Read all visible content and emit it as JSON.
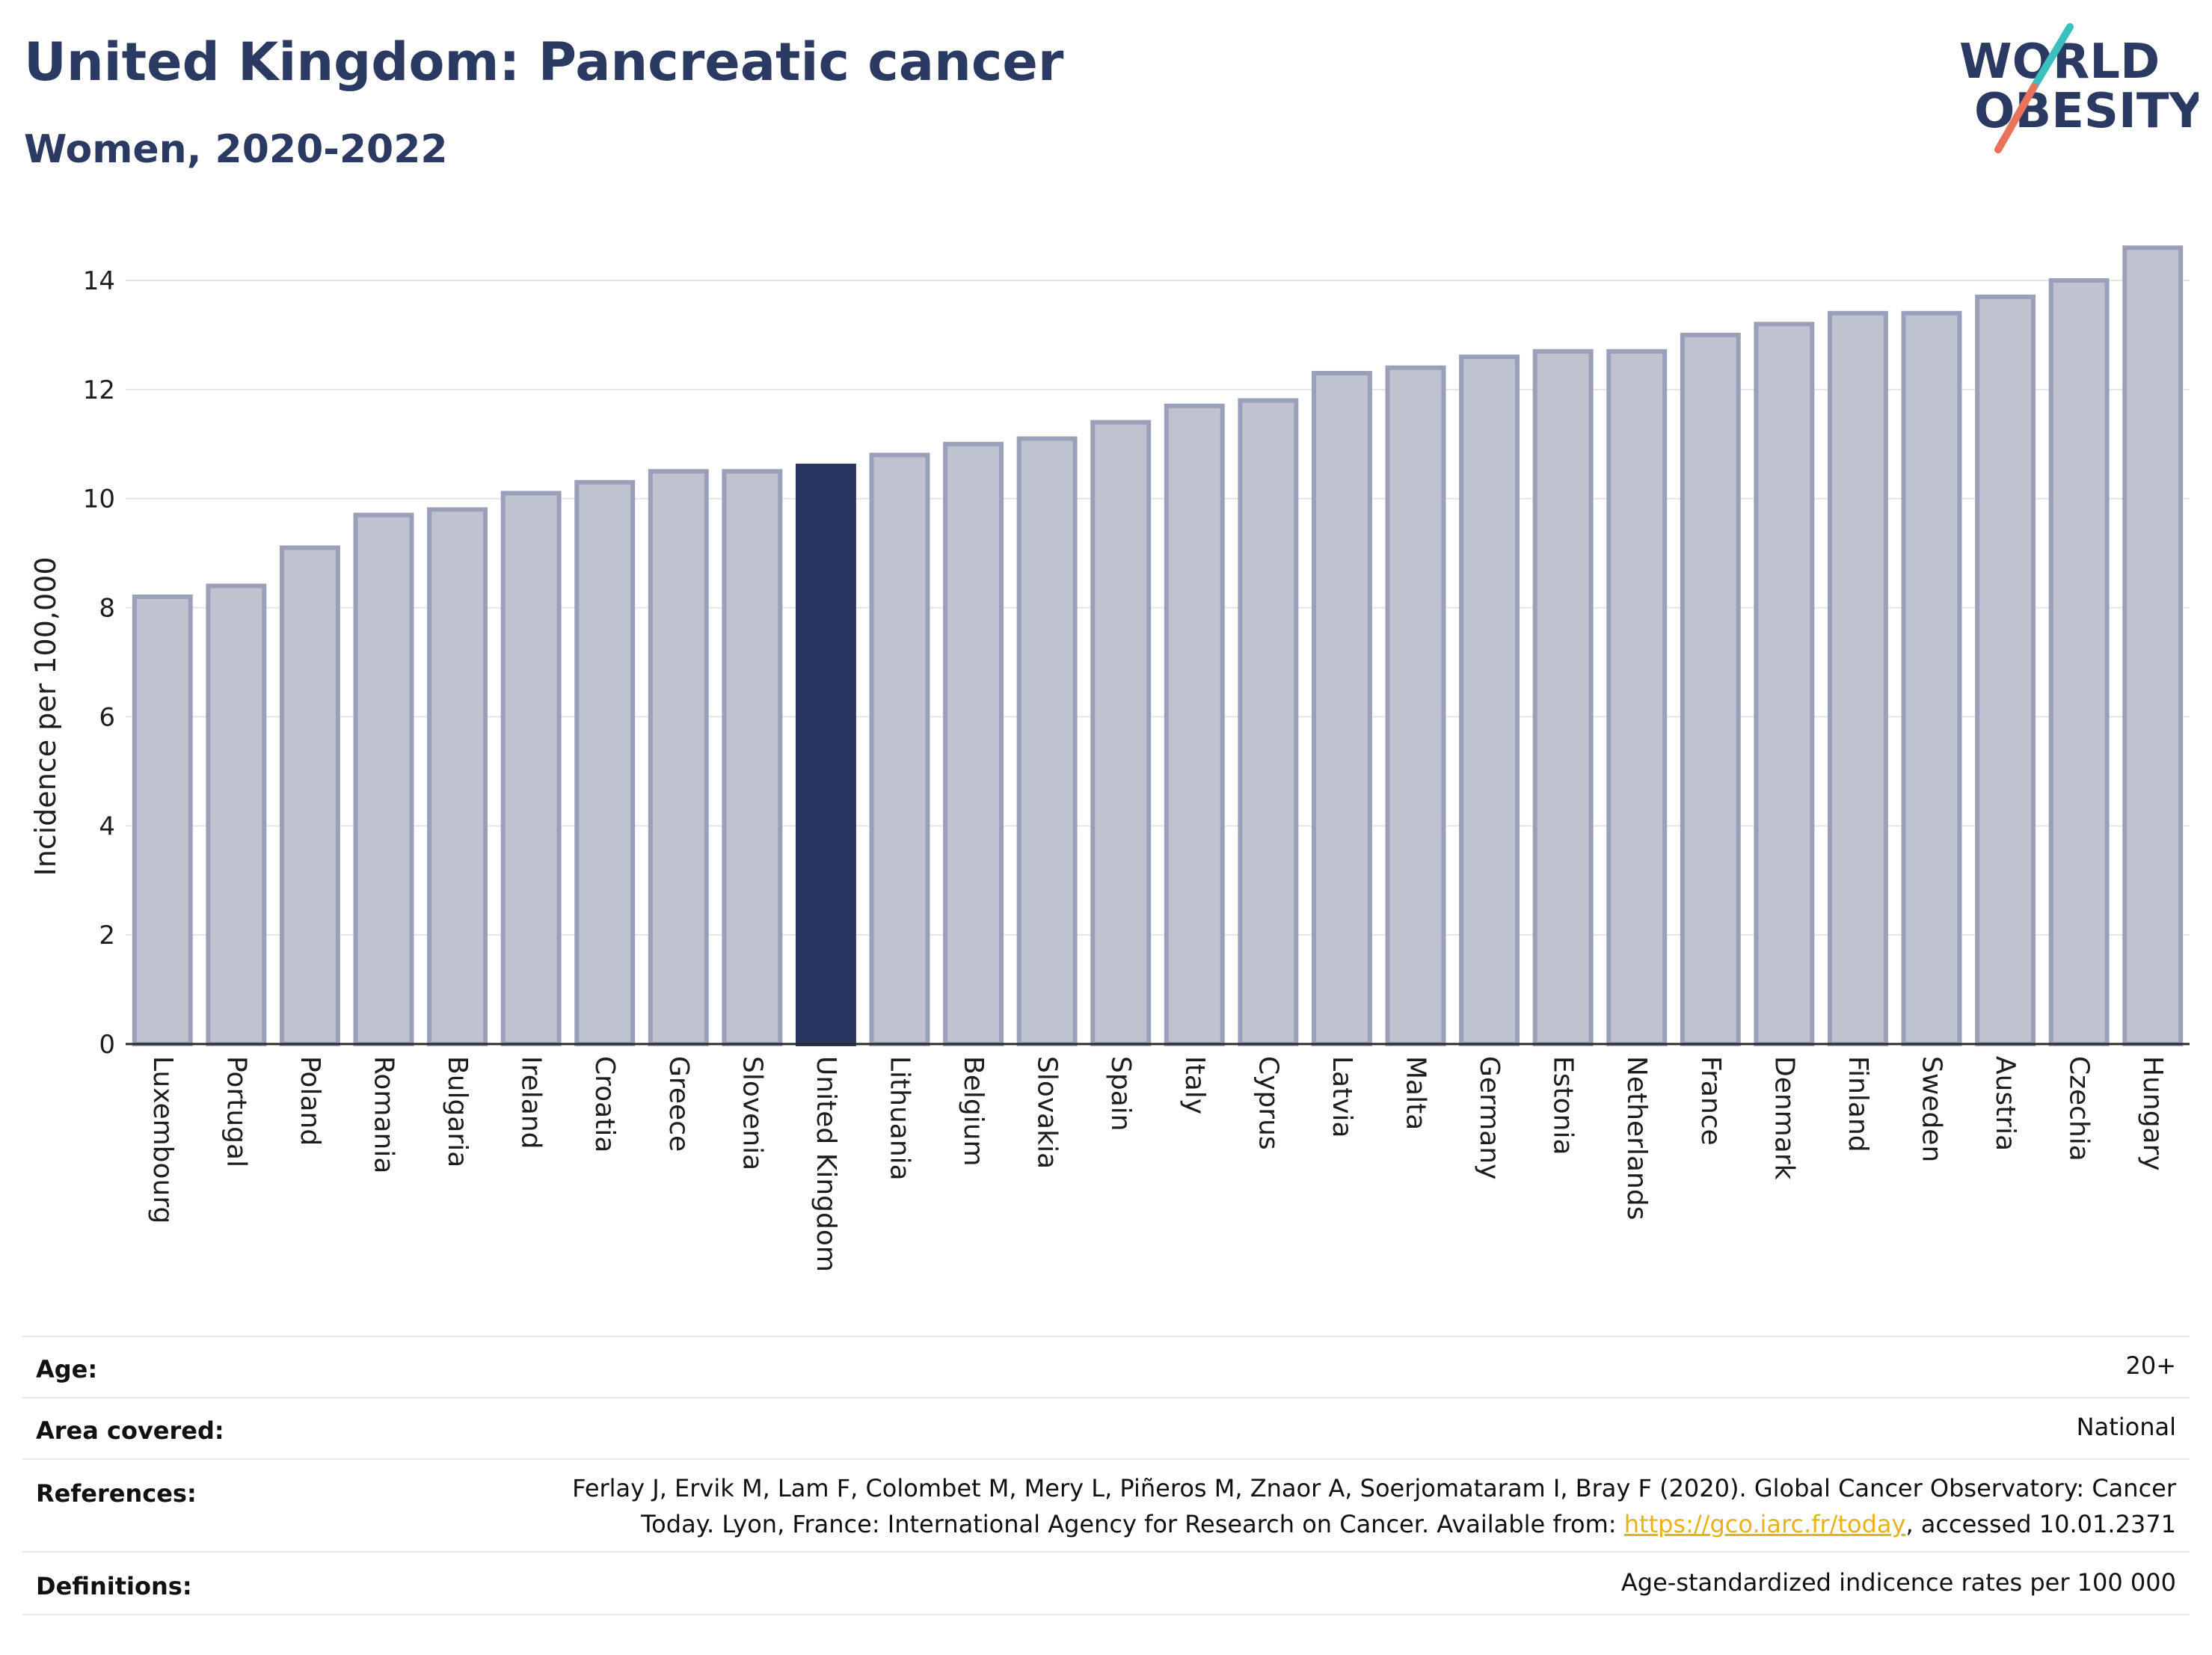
{
  "header": {
    "title": "United Kingdom: Pancreatic cancer",
    "subtitle": "Women, 2020-2022"
  },
  "logo": {
    "line1": "WORLD",
    "line2": "OBESITY"
  },
  "colors": {
    "bar": "#bfc2cf",
    "bar_outline": "#9aa0b9",
    "highlight": "#2b3561",
    "title": "#2b3a63",
    "grid": "#e3e5ea"
  },
  "chart_data": {
    "type": "bar",
    "title": "United Kingdom: Pancreatic cancer",
    "subtitle": "Women, 2020-2022",
    "ylabel": "Incidence per 100,000",
    "xlabel": "",
    "ylim": [
      0,
      15
    ],
    "yticks": [
      0,
      2,
      4,
      6,
      8,
      10,
      12,
      14
    ],
    "grid": true,
    "highlight": "United Kingdom",
    "categories": [
      "Luxembourg",
      "Portugal",
      "Poland",
      "Romania",
      "Bulgaria",
      "Ireland",
      "Croatia",
      "Greece",
      "Slovenia",
      "United Kingdom",
      "Lithuania",
      "Belgium",
      "Slovakia",
      "Spain",
      "Italy",
      "Cyprus",
      "Latvia",
      "Malta",
      "Germany",
      "Estonia",
      "Netherlands",
      "France",
      "Denmark",
      "Finland",
      "Sweden",
      "Austria",
      "Czechia",
      "Hungary"
    ],
    "values": [
      8.2,
      8.4,
      9.1,
      9.7,
      9.8,
      10.1,
      10.3,
      10.5,
      10.5,
      10.6,
      10.8,
      11.0,
      11.1,
      11.4,
      11.7,
      11.8,
      12.3,
      12.4,
      12.6,
      12.7,
      12.7,
      13.0,
      13.2,
      13.4,
      13.4,
      13.7,
      14.0,
      14.6
    ]
  },
  "info": {
    "age_label": "Age:",
    "age_value": "20+",
    "area_label": "Area covered:",
    "area_value": "National",
    "references_label": "References:",
    "references_line1": "Ferlay J, Ervik M, Lam F, Colombet M, Mery L, Piñeros M, Znaor A, Soerjomataram I, Bray F (2020). Global Cancer Observatory: Cancer",
    "references_line2_pre": "Today. Lyon, France: International Agency for Research on Cancer. Available from: ",
    "references_link": "https://gco.iarc.fr/today",
    "references_line2_post": ", accessed 10.01.2371",
    "definitions_label": "Definitions:",
    "definitions_value": "Age-standardized indicence rates per 100 000"
  }
}
